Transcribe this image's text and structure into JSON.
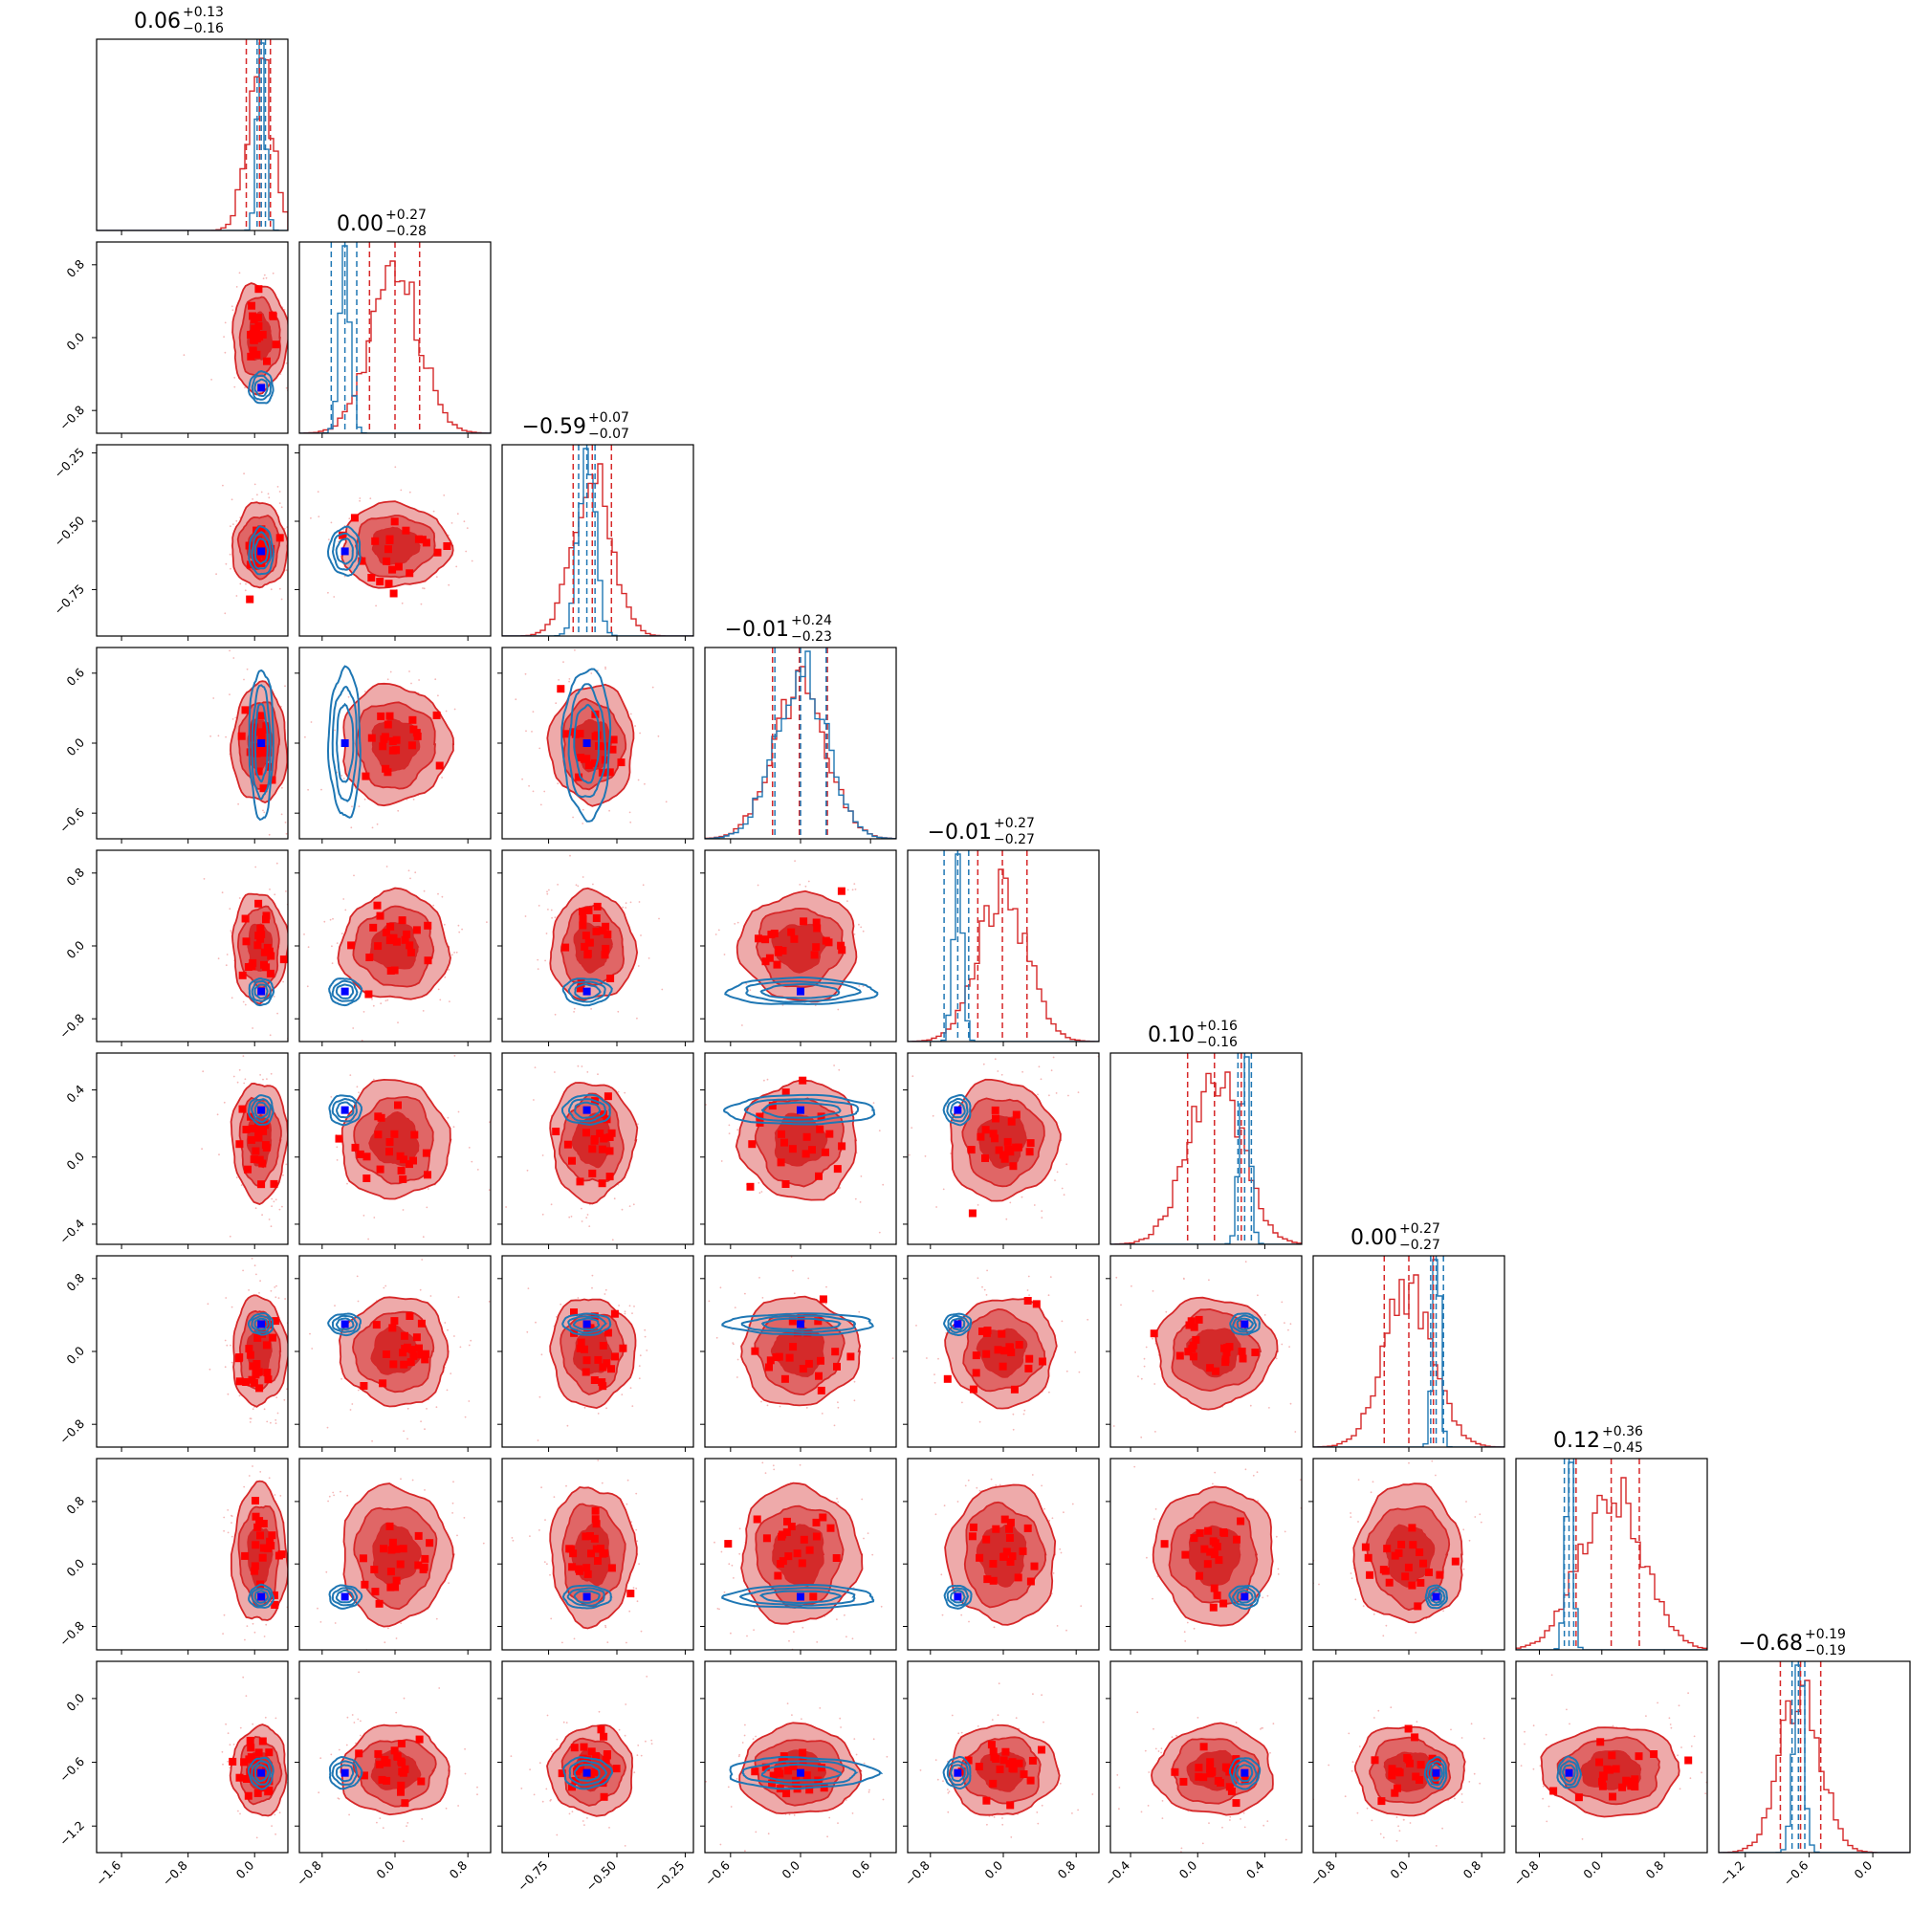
{
  "chart_data": {
    "type": "scatter",
    "description": "corner",
    "n_params": 9,
    "colors": {
      "red_dist": "#d62728",
      "blue_dist": "#1f77b4",
      "truth_marker": "#0000ff",
      "red_marker": "#ff0000",
      "red_fill_outer": "#eeaaaa",
      "red_fill_mid": "#e06666",
      "red_fill_inner": "#d42a2a"
    },
    "titles": [
      {
        "median": "0.06",
        "plus": "+0.13",
        "minus": "−0.16"
      },
      {
        "median": "0.00",
        "plus": "+0.27",
        "minus": "−0.28"
      },
      {
        "median": "−0.59",
        "plus": "+0.07",
        "minus": "−0.07"
      },
      {
        "median": "−0.01",
        "plus": "+0.24",
        "minus": "−0.23"
      },
      {
        "median": "−0.01",
        "plus": "+0.27",
        "minus": "−0.27"
      },
      {
        "median": "0.10",
        "plus": "+0.16",
        "minus": "−0.16"
      },
      {
        "median": "0.00",
        "plus": "+0.27",
        "minus": "−0.27"
      },
      {
        "median": "0.12",
        "plus": "+0.36",
        "minus": "−0.45"
      },
      {
        "median": "−0.68",
        "plus": "+0.19",
        "minus": "−0.19"
      }
    ],
    "ranges": [
      [
        -1.9,
        0.4
      ],
      [
        -1.05,
        1.05
      ],
      [
        -0.92,
        -0.22
      ],
      [
        -0.82,
        0.82
      ],
      [
        -1.05,
        1.05
      ],
      [
        -0.52,
        0.62
      ],
      [
        -1.05,
        1.05
      ],
      [
        -1.1,
        1.35
      ],
      [
        -1.45,
        0.35
      ]
    ],
    "x_ticks": [
      {
        "values": [
          -1.6,
          -0.8,
          0.0
        ],
        "labels": [
          "−1.6",
          "−0.8",
          "0.0"
        ]
      },
      {
        "values": [
          -0.8,
          0.0,
          0.8
        ],
        "labels": [
          "−0.8",
          "0.0",
          "0.8"
        ]
      },
      {
        "values": [
          -0.75,
          -0.5,
          -0.25
        ],
        "labels": [
          "−0.75",
          "−0.50",
          "−0.25"
        ]
      },
      {
        "values": [
          -0.6,
          0.0,
          0.6
        ],
        "labels": [
          "−0.6",
          "0.0",
          "0.6"
        ]
      },
      {
        "values": [
          -0.8,
          0.0,
          0.8
        ],
        "labels": [
          "−0.8",
          "0.0",
          "0.8"
        ]
      },
      {
        "values": [
          -0.4,
          0.0,
          0.4
        ],
        "labels": [
          "−0.4",
          "0.0",
          "0.4"
        ]
      },
      {
        "values": [
          -0.8,
          0.0,
          0.8
        ],
        "labels": [
          "−0.8",
          "0.0",
          "0.8"
        ]
      },
      {
        "values": [
          -0.8,
          0.0,
          0.8
        ],
        "labels": [
          "−0.8",
          "0.0",
          "0.8"
        ]
      },
      {
        "values": [
          -1.2,
          -0.6,
          0.0
        ],
        "labels": [
          "−1.2",
          "−0.6",
          "0.0"
        ]
      }
    ],
    "y_ticks": [
      null,
      {
        "values": [
          -0.8,
          0.0,
          0.8
        ],
        "labels": [
          "−0.8",
          "0.0",
          "0.8"
        ]
      },
      {
        "values": [
          -0.75,
          -0.5,
          -0.25
        ],
        "labels": [
          "−0.75",
          "−0.50",
          "−0.25"
        ]
      },
      {
        "values": [
          -0.6,
          0.0,
          0.6
        ],
        "labels": [
          "−0.6",
          "0.0",
          "0.6"
        ]
      },
      {
        "values": [
          -0.8,
          0.0,
          0.8
        ],
        "labels": [
          "−0.8",
          "0.0",
          "0.8"
        ]
      },
      {
        "values": [
          -0.4,
          0.0,
          0.4
        ],
        "labels": [
          "−0.4",
          "0.0",
          "0.4"
        ]
      },
      {
        "values": [
          -0.8,
          0.0,
          0.8
        ],
        "labels": [
          "−0.8",
          "0.0",
          "0.8"
        ]
      },
      {
        "values": [
          -0.8,
          0.0,
          0.8
        ],
        "labels": [
          "−0.8",
          "0.0",
          "0.8"
        ]
      },
      {
        "values": [
          -1.2,
          -0.6,
          0.0
        ],
        "labels": [
          "−1.2",
          "−0.6",
          "0.0"
        ]
      }
    ],
    "red_posterior": {
      "median": [
        0.06,
        0.0,
        -0.59,
        -0.01,
        -0.01,
        0.1,
        0.0,
        0.12,
        -0.68
      ],
      "sigma": [
        0.15,
        0.27,
        0.07,
        0.23,
        0.27,
        0.16,
        0.27,
        0.4,
        0.19
      ],
      "q16": [
        -0.1,
        -0.28,
        -0.66,
        -0.24,
        -0.28,
        -0.06,
        -0.27,
        -0.33,
        -0.87
      ],
      "q84": [
        0.19,
        0.27,
        -0.52,
        0.23,
        0.26,
        0.26,
        0.27,
        0.48,
        -0.49
      ]
    },
    "blue_posterior": {
      "median": [
        0.08,
        -0.55,
        -0.61,
        0.0,
        -0.5,
        0.28,
        0.3,
        -0.42,
        -0.7
      ],
      "sigma": [
        0.05,
        0.06,
        0.03,
        0.22,
        0.05,
        0.03,
        0.04,
        0.05,
        0.05
      ],
      "q16": [
        0.03,
        -0.7,
        -0.64,
        -0.22,
        -0.65,
        0.24,
        0.24,
        -0.48,
        -0.76
      ],
      "q84": [
        0.13,
        -0.42,
        -0.58,
        0.22,
        -0.38,
        0.32,
        0.38,
        -0.36,
        -0.64
      ]
    },
    "truth": [
      0.08,
      -0.55,
      -0.61,
      0.0,
      -0.5,
      0.28,
      0.3,
      -0.42,
      -0.7
    ]
  }
}
